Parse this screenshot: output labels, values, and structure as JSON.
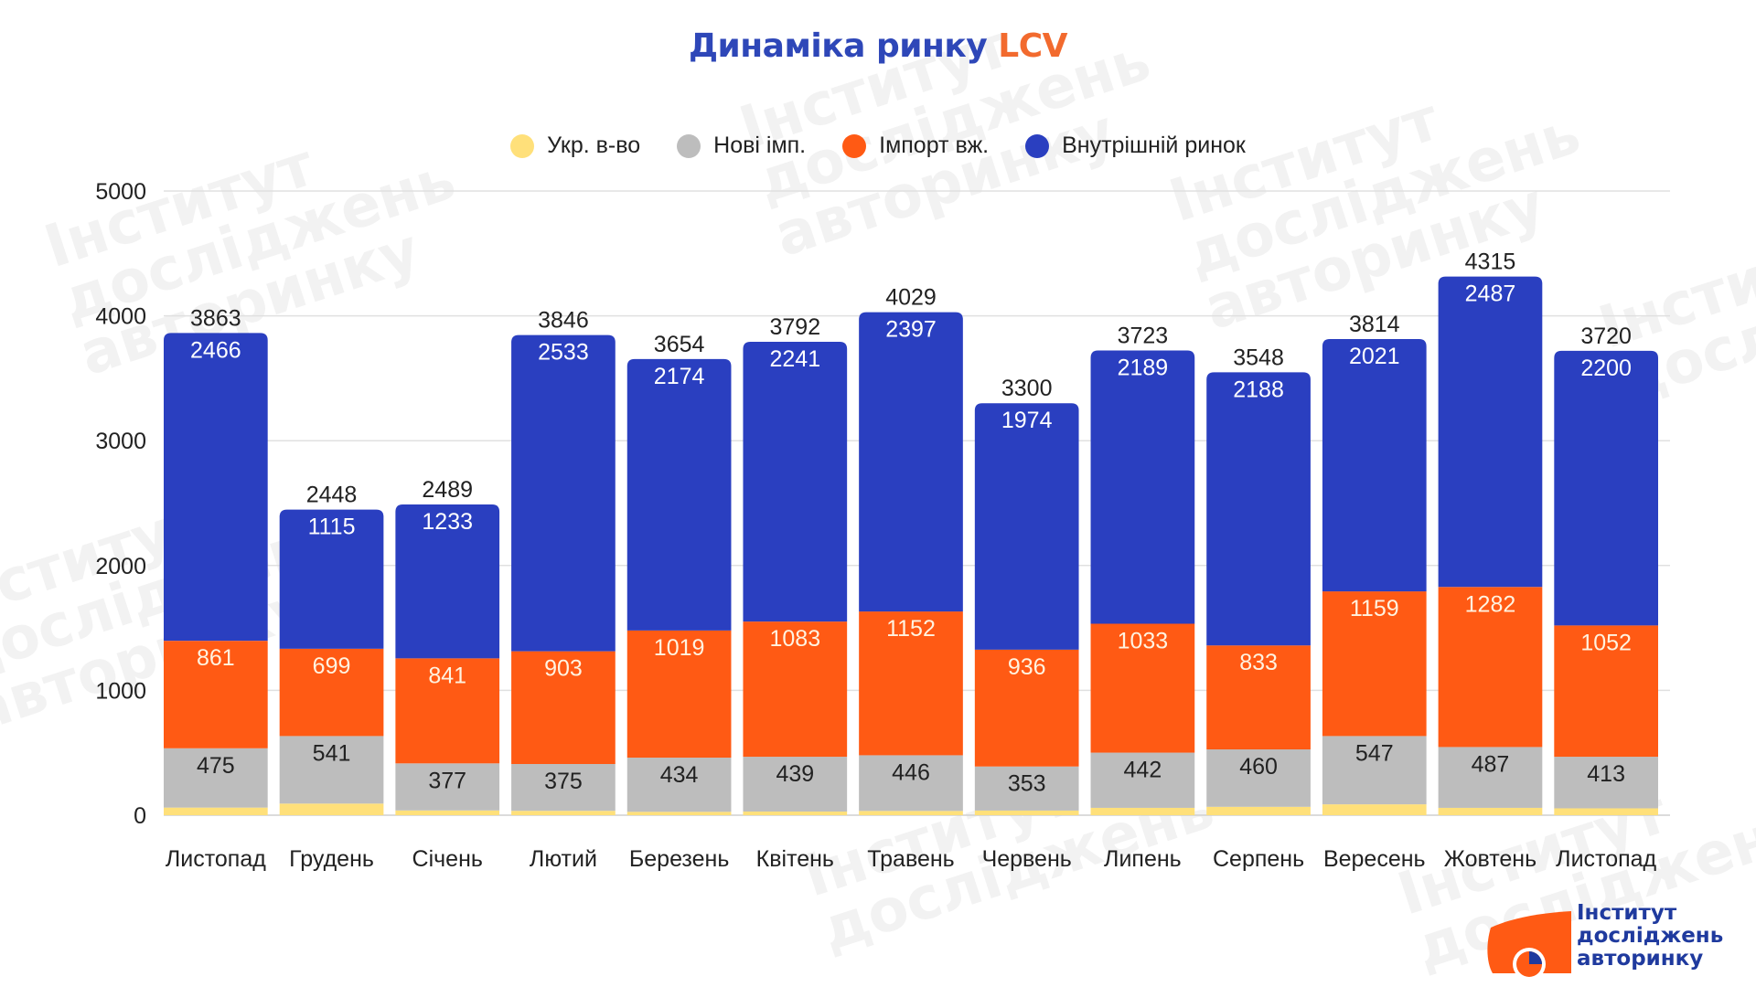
{
  "title": {
    "main": "Динаміка ринку",
    "accent": "LCV"
  },
  "colors": {
    "title": "#2e47b8",
    "accent": "#f26a2e",
    "ukr": "#ffe07a",
    "new_imp": "#bdbdbd",
    "import_used": "#ff5a14",
    "domestic": "#2a3fc0",
    "grid": "#e0e0e0"
  },
  "legend": [
    {
      "label": "Укр. в-во",
      "color": "#ffe07a"
    },
    {
      "label": "Нові імп.",
      "color": "#bdbdbd"
    },
    {
      "label": "Імпорт вж.",
      "color": "#ff5a14"
    },
    {
      "label": "Внутрішній ринок",
      "color": "#2a3fc0"
    }
  ],
  "logo": {
    "line1": "Інститут",
    "line2": "досліджень",
    "line3": "авторинку"
  },
  "chart_data": {
    "type": "bar",
    "stacked": true,
    "title": "Динаміка ринку LCV",
    "xlabel": "",
    "ylabel": "",
    "ylim": [
      0,
      5000
    ],
    "yticks": [
      0,
      1000,
      2000,
      3000,
      4000,
      5000
    ],
    "grid": true,
    "legend_position": "top",
    "categories": [
      "Листопад",
      "Грудень",
      "Січень",
      "Лютий",
      "Березень",
      "Квітень",
      "Травень",
      "Червень",
      "Липень",
      "Серпень",
      "Вересень",
      "Жовтень",
      "Листопад"
    ],
    "series": [
      {
        "name": "Укр. в-во",
        "color": "#ffe07a",
        "labeled": false,
        "values": [
          61,
          93,
          38,
          35,
          27,
          29,
          34,
          37,
          59,
          67,
          87,
          59,
          55
        ]
      },
      {
        "name": "Нові імп.",
        "color": "#bdbdbd",
        "labeled": true,
        "label_color": "#222222",
        "values": [
          475,
          541,
          377,
          375,
          434,
          439,
          446,
          353,
          442,
          460,
          547,
          487,
          413
        ]
      },
      {
        "name": "Імпорт вж.",
        "color": "#ff5a14",
        "labeled": true,
        "label_color": "#fff3e0",
        "values": [
          861,
          699,
          841,
          903,
          1019,
          1083,
          1152,
          936,
          1033,
          833,
          1159,
          1282,
          1052
        ]
      },
      {
        "name": "Внутрішній ринок",
        "color": "#2a3fc0",
        "labeled": true,
        "label_color": "#ffffff",
        "values": [
          2466,
          1115,
          1233,
          2533,
          2174,
          2241,
          2397,
          1974,
          2189,
          2188,
          2021,
          2487,
          2200
        ]
      }
    ],
    "totals": [
      3863,
      2448,
      2489,
      3846,
      3654,
      3792,
      4029,
      3300,
      3723,
      3548,
      3814,
      4315,
      3720
    ]
  }
}
